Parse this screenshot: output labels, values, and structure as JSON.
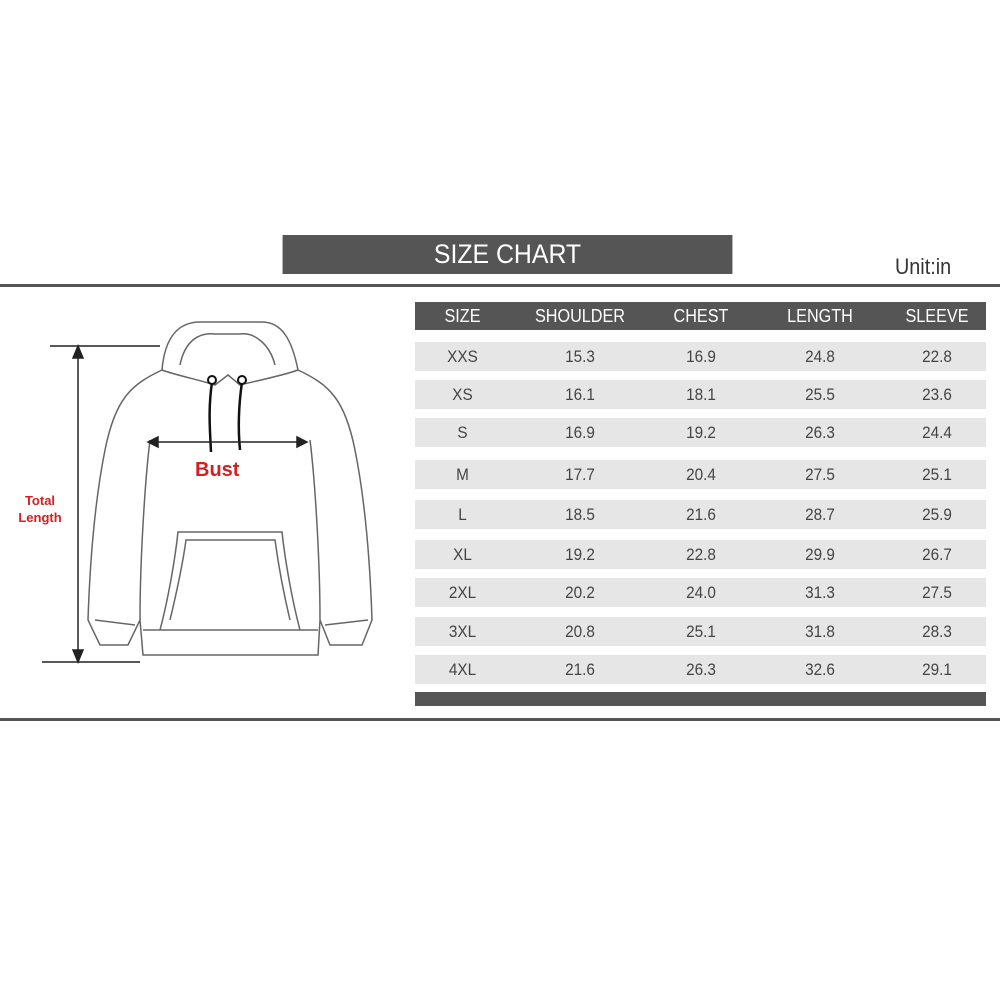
{
  "title": "SIZE CHART",
  "unit": "Unit:in",
  "diagram": {
    "bust_label": "Bust",
    "length_label_line1": "Total",
    "length_label_line2": "Length",
    "label_color": "#d42020"
  },
  "table": {
    "headers": [
      "SIZE",
      "SHOULDER",
      "CHEST",
      "LENGTH",
      "SLEEVE"
    ],
    "rows": [
      [
        "XXS",
        "15.3",
        "16.9",
        "24.8",
        "22.8"
      ],
      [
        "XS",
        "16.1",
        "18.1",
        "25.5",
        "23.6"
      ],
      [
        "S",
        "16.9",
        "19.2",
        "26.3",
        "24.4"
      ],
      [
        "M",
        "17.7",
        "20.4",
        "27.5",
        "25.1"
      ],
      [
        "L",
        "18.5",
        "21.6",
        "28.7",
        "25.9"
      ],
      [
        "XL",
        "19.2",
        "22.8",
        "29.9",
        "26.7"
      ],
      [
        "2XL",
        "20.2",
        "24.0",
        "31.3",
        "27.5"
      ],
      [
        "3XL",
        "20.8",
        "25.1",
        "31.8",
        "28.3"
      ],
      [
        "4XL",
        "21.6",
        "26.3",
        "32.6",
        "29.1"
      ]
    ]
  },
  "colors": {
    "header_bg": "#555555",
    "row_bg": "#e6e6e6"
  }
}
